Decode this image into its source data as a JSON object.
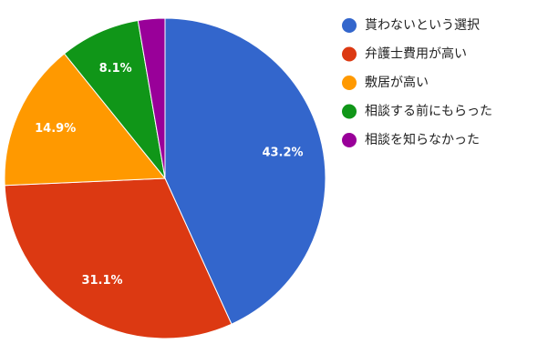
{
  "chart_data": {
    "type": "pie",
    "categories": [
      "貰わないという選択",
      "弁護士費用が高い",
      "敷居が高い",
      "相談する前にもらった",
      "相談を知らなかった"
    ],
    "values": [
      43.2,
      31.1,
      14.9,
      8.1,
      2.7
    ],
    "value_labels": [
      "43.2%",
      "31.1%",
      "14.9%",
      "8.1%",
      null
    ],
    "colors": [
      "#3366cc",
      "#dc3912",
      "#ff9900",
      "#109618",
      "#990099"
    ],
    "legend": "right"
  }
}
